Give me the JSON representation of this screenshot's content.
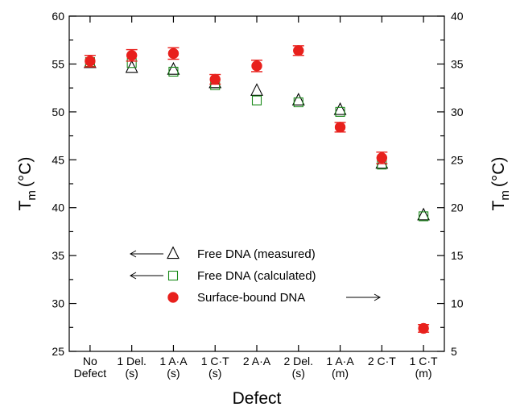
{
  "chart_data": {
    "type": "scatter",
    "xlabel": "Defect",
    "ylabel_left": {
      "main": "T",
      "sub": "m",
      "unit": "(°C)"
    },
    "ylabel_right": {
      "main": "T",
      "sub": "m",
      "unit": "(°C)"
    },
    "categories": [
      [
        "No",
        "Defect"
      ],
      [
        "1 Del.",
        "(s)"
      ],
      [
        "1 A·A",
        "(s)"
      ],
      [
        "1 C·T",
        "(s)"
      ],
      [
        "2 A·A",
        ""
      ],
      [
        "2 Del.",
        "(s)"
      ],
      [
        "1 A·A",
        "(m)"
      ],
      [
        "2 C·T",
        ""
      ],
      [
        "1 C·T",
        "(m)"
      ]
    ],
    "y_left": {
      "min": 25,
      "max": 60,
      "ticks": [
        25,
        30,
        35,
        40,
        45,
        50,
        55,
        60
      ]
    },
    "y_right": {
      "min": 5,
      "max": 40,
      "ticks": [
        5,
        10,
        15,
        20,
        25,
        30,
        35,
        40
      ]
    },
    "series": [
      {
        "name": "Free DNA (measured)",
        "axis": "left",
        "marker": "triangle",
        "color": "#000000",
        "values": [
          55.1,
          54.6,
          54.4,
          53.0,
          52.2,
          51.2,
          50.2,
          44.6,
          39.2
        ]
      },
      {
        "name": "Free DNA (calculated)",
        "axis": "left",
        "marker": "square",
        "color": "#1a8a1a",
        "values": [
          55.2,
          55.1,
          54.2,
          52.8,
          51.2,
          51.0,
          50.0,
          44.5,
          39.1
        ]
      },
      {
        "name": "Surface-bound DNA",
        "axis": "right",
        "marker": "circle",
        "color": "#e8201c",
        "values": [
          35.3,
          35.9,
          36.1,
          33.4,
          34.8,
          36.4,
          28.4,
          25.2,
          7.4
        ],
        "errors": [
          0.6,
          0.6,
          0.6,
          0.5,
          0.6,
          0.5,
          0.5,
          0.6,
          0.4
        ]
      }
    ],
    "legend_position": "bottom-center",
    "grid": false
  }
}
